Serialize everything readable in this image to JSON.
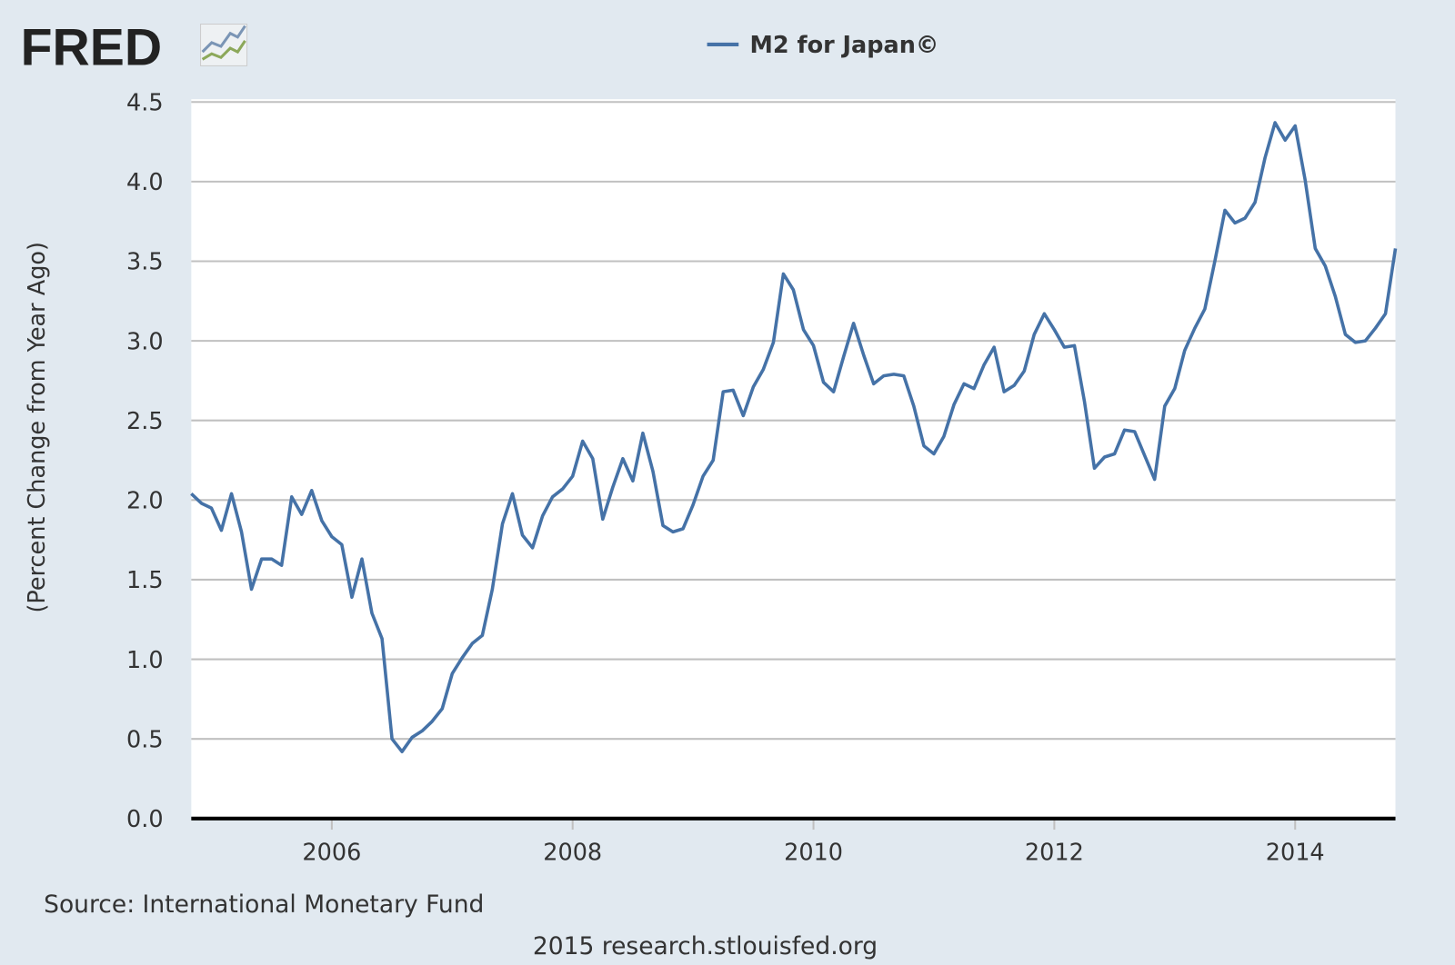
{
  "logo": "FRED",
  "chart_data": {
    "type": "line",
    "ylabel": "(Percent Change from Year Ago)",
    "source": "Source: International Monetary Fund",
    "footer": "2015 research.stlouisfed.org",
    "x": [
      2004.833,
      2004.917,
      2005,
      2005.083,
      2005.167,
      2005.25,
      2005.333,
      2005.417,
      2005.5,
      2005.583,
      2005.667,
      2005.75,
      2005.833,
      2005.917,
      2006,
      2006.083,
      2006.167,
      2006.25,
      2006.333,
      2006.417,
      2006.5,
      2006.583,
      2006.667,
      2006.75,
      2006.833,
      2006.917,
      2007,
      2007.083,
      2007.167,
      2007.25,
      2007.333,
      2007.417,
      2007.5,
      2007.583,
      2007.667,
      2007.75,
      2007.833,
      2007.917,
      2008,
      2008.083,
      2008.167,
      2008.25,
      2008.333,
      2008.417,
      2008.5,
      2008.583,
      2008.667,
      2008.75,
      2008.833,
      2008.917,
      2009,
      2009.083,
      2009.167,
      2009.25,
      2009.333,
      2009.417,
      2009.5,
      2009.583,
      2009.667,
      2009.75,
      2009.833,
      2009.917,
      2010,
      2010.083,
      2010.167,
      2010.25,
      2010.333,
      2010.417,
      2010.5,
      2010.583,
      2010.667,
      2010.75,
      2010.833,
      2010.917,
      2011,
      2011.083,
      2011.167,
      2011.25,
      2011.333,
      2011.417,
      2011.5,
      2011.583,
      2011.667,
      2011.75,
      2011.833,
      2011.917,
      2012,
      2012.083,
      2012.167,
      2012.25,
      2012.333,
      2012.417,
      2012.5,
      2012.583,
      2012.667,
      2012.75,
      2012.833,
      2012.917,
      2013,
      2013.083,
      2013.167,
      2013.25,
      2013.333,
      2013.417,
      2013.5,
      2013.583,
      2013.667,
      2013.75,
      2013.833,
      2013.917,
      2014,
      2014.083,
      2014.167,
      2014.25,
      2014.333,
      2014.417,
      2014.5,
      2014.583,
      2014.667,
      2014.75,
      2014.833
    ],
    "series": [
      {
        "name": "M2 for Japan©",
        "color": "#4572a7",
        "values": [
          2.04,
          1.98,
          1.95,
          1.81,
          2.04,
          1.8,
          1.44,
          1.63,
          1.63,
          1.59,
          2.02,
          1.91,
          2.06,
          1.87,
          1.77,
          1.72,
          1.39,
          1.63,
          1.29,
          1.13,
          0.5,
          0.42,
          0.51,
          0.55,
          0.61,
          0.69,
          0.91,
          1.01,
          1.1,
          1.15,
          1.44,
          1.85,
          2.04,
          1.78,
          1.7,
          1.9,
          2.02,
          2.07,
          2.15,
          2.37,
          2.26,
          1.88,
          2.08,
          2.26,
          2.12,
          2.42,
          2.18,
          1.84,
          1.8,
          1.82,
          1.97,
          2.15,
          2.25,
          2.68,
          2.69,
          2.53,
          2.71,
          2.82,
          2.99,
          3.42,
          3.32,
          3.07,
          2.97,
          2.74,
          2.68,
          2.9,
          3.11,
          2.91,
          2.73,
          2.78,
          2.79,
          2.78,
          2.59,
          2.34,
          2.29,
          2.4,
          2.6,
          2.73,
          2.7,
          2.85,
          2.96,
          2.68,
          2.72,
          2.81,
          3.04,
          3.17,
          3.07,
          2.96,
          2.97,
          2.62,
          2.2,
          2.27,
          2.29,
          2.44,
          2.43,
          2.28,
          2.13,
          2.59,
          2.7,
          2.94,
          3.08,
          3.2,
          3.5,
          3.82,
          3.74,
          3.77,
          3.87,
          4.15,
          4.37,
          4.26,
          4.35,
          4.01,
          3.58,
          3.47,
          3.28,
          3.04,
          2.99,
          3.0,
          3.08,
          3.17,
          3.58
        ]
      }
    ],
    "xlim": [
      2004.833,
      2014.833
    ],
    "xticks": [
      2006,
      2008,
      2010,
      2012,
      2014
    ],
    "ylim": [
      0,
      4.5
    ],
    "yticks": [
      {
        "value": 0,
        "label": "0.0"
      },
      0.5,
      {
        "value": 1,
        "label": "1.0"
      },
      1.5,
      {
        "value": 2,
        "label": "2.0"
      },
      2.5,
      {
        "value": 3,
        "label": "3.0"
      },
      3.5,
      {
        "value": 4,
        "label": "4.0"
      },
      4.5
    ],
    "grid": true
  }
}
